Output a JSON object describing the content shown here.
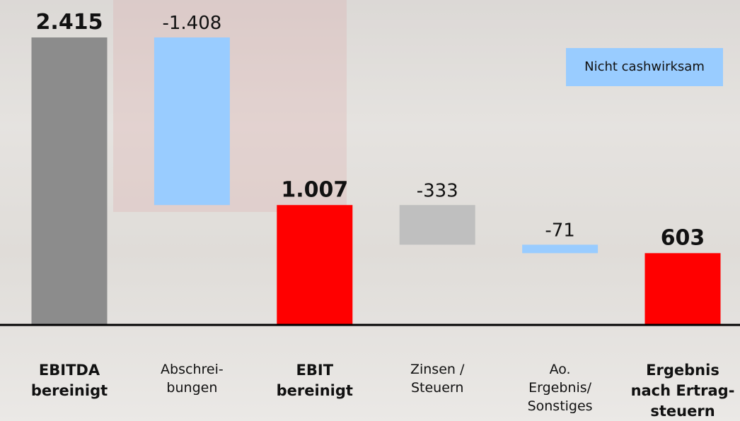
{
  "chart_data": {
    "type": "waterfall",
    "categories": [
      "EBITDA\nbereinigt",
      "Abschrei-\nbungen",
      "EBIT\nbereinigt",
      "Zinsen /\nSteuern",
      "Ao.\nErgebnis/\nSonstiges",
      "Ergebnis\nnach Ertrag-\nsteuern"
    ],
    "values": [
      2415,
      -1408,
      1007,
      -333,
      -71,
      603
    ],
    "value_labels": [
      "2.415",
      "-1.408",
      "1.007",
      "-333",
      "-71",
      "603"
    ],
    "measure": [
      "absolute",
      "relative",
      "total",
      "relative",
      "relative",
      "total"
    ],
    "colors": [
      "#8c8c8c",
      "#99ccff",
      "#ff0000",
      "#bfbfbf",
      "#99ccff",
      "#ff0000"
    ],
    "legend": {
      "label": "Nicht cashwirksam",
      "color": "#99ccff"
    }
  }
}
